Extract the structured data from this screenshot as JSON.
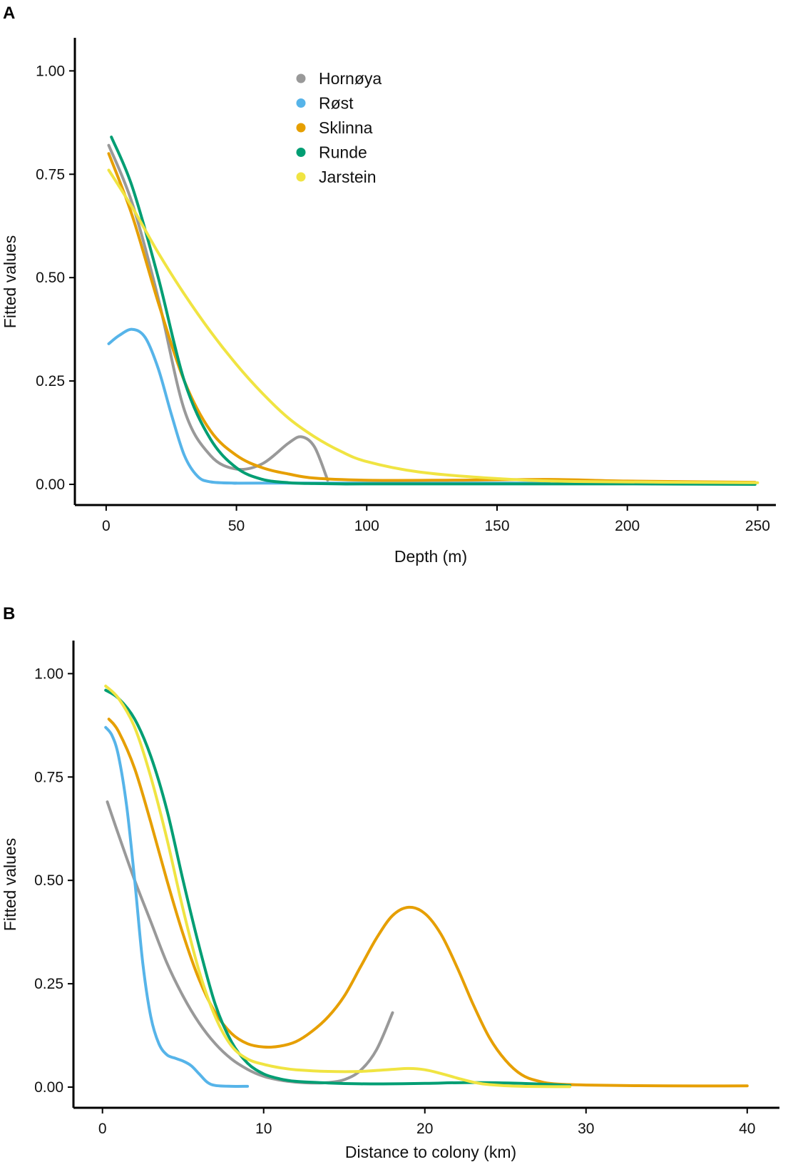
{
  "chart_data": [
    {
      "panel": "A",
      "type": "line",
      "title": "",
      "xlabel": "Depth (m)",
      "ylabel": "Fitted values",
      "xlim": [
        -12,
        257
      ],
      "ylim": [
        -0.05,
        1.08
      ],
      "xticks": [
        0,
        50,
        100,
        150,
        200,
        250
      ],
      "yticks": [
        0.0,
        0.25,
        0.5,
        0.75,
        1.0
      ],
      "ytick_labels": [
        "0.00",
        "0.25",
        "0.50",
        "0.75",
        "1.00"
      ],
      "grid": false,
      "legend_position": "top-center",
      "series": [
        {
          "name": "Hornøya",
          "color": "#999999",
          "x": [
            1,
            10,
            20,
            30,
            40,
            50,
            60,
            70,
            75,
            80,
            85
          ],
          "y": [
            0.82,
            0.68,
            0.45,
            0.18,
            0.07,
            0.037,
            0.05,
            0.1,
            0.115,
            0.09,
            0.01
          ]
        },
        {
          "name": "Røst",
          "color": "#56B4E9",
          "x": [
            1,
            5,
            10,
            15,
            20,
            25,
            30,
            35,
            40,
            50,
            60,
            170
          ],
          "y": [
            0.34,
            0.36,
            0.375,
            0.355,
            0.28,
            0.17,
            0.07,
            0.02,
            0.006,
            0.003,
            0.003,
            0.003
          ]
        },
        {
          "name": "Sklinna",
          "color": "#E69F00",
          "x": [
            1,
            10,
            20,
            30,
            40,
            50,
            60,
            70,
            80,
            100,
            130,
            170,
            200,
            249
          ],
          "y": [
            0.8,
            0.65,
            0.44,
            0.25,
            0.13,
            0.07,
            0.04,
            0.025,
            0.015,
            0.01,
            0.01,
            0.012,
            0.008,
            0.005
          ]
        },
        {
          "name": "Runde",
          "color": "#009E73",
          "x": [
            2,
            10,
            20,
            30,
            40,
            50,
            60,
            70,
            80,
            90,
            100,
            150,
            200,
            249
          ],
          "y": [
            0.84,
            0.72,
            0.5,
            0.25,
            0.11,
            0.04,
            0.012,
            0.004,
            0.002,
            0.001,
            0.001,
            0.001,
            0.001,
            0.0
          ]
        },
        {
          "name": "Jarstein",
          "color": "#F0E442",
          "x": [
            1,
            10,
            20,
            30,
            40,
            50,
            60,
            70,
            80,
            90,
            100,
            120,
            150,
            180,
            250
          ],
          "y": [
            0.76,
            0.67,
            0.56,
            0.46,
            0.37,
            0.29,
            0.22,
            0.16,
            0.115,
            0.08,
            0.055,
            0.03,
            0.014,
            0.007,
            0.004
          ]
        }
      ]
    },
    {
      "panel": "B",
      "type": "line",
      "title": "",
      "xlabel": "Distance to colony (km)",
      "ylabel": "Fitted values",
      "xlim": [
        -1.8,
        42
      ],
      "ylim": [
        -0.05,
        1.08
      ],
      "xticks": [
        0,
        10,
        20,
        30,
        40
      ],
      "yticks": [
        0.0,
        0.25,
        0.5,
        0.75,
        1.0
      ],
      "ytick_labels": [
        "0.00",
        "0.25",
        "0.50",
        "0.75",
        "1.00"
      ],
      "grid": false,
      "legend_position": "none",
      "series": [
        {
          "name": "Hornøya",
          "color": "#999999",
          "x": [
            0.3,
            1,
            2,
            3,
            4,
            5,
            6,
            7,
            8,
            9,
            10,
            11,
            12,
            13,
            14,
            15,
            16,
            17,
            18
          ],
          "y": [
            0.69,
            0.61,
            0.5,
            0.4,
            0.3,
            0.22,
            0.155,
            0.105,
            0.068,
            0.043,
            0.026,
            0.017,
            0.012,
            0.01,
            0.011,
            0.018,
            0.04,
            0.09,
            0.18
          ]
        },
        {
          "name": "Røst",
          "color": "#56B4E9",
          "x": [
            0.2,
            0.6,
            1,
            1.5,
            2,
            2.5,
            3,
            3.5,
            4,
            4.5,
            5,
            5.5,
            6,
            6.5,
            7,
            8,
            9
          ],
          "y": [
            0.87,
            0.85,
            0.8,
            0.68,
            0.5,
            0.3,
            0.17,
            0.105,
            0.078,
            0.07,
            0.063,
            0.052,
            0.032,
            0.012,
            0.004,
            0.002,
            0.002
          ]
        },
        {
          "name": "Sklinna",
          "color": "#E69F00",
          "x": [
            0.4,
            1,
            2,
            3,
            4,
            5,
            6,
            7,
            8,
            9,
            10,
            11,
            12,
            13,
            14,
            15,
            16,
            17,
            18,
            19,
            20,
            21,
            22,
            23,
            24,
            25,
            26,
            27,
            28,
            30,
            35,
            40
          ],
          "y": [
            0.89,
            0.86,
            0.77,
            0.64,
            0.5,
            0.37,
            0.26,
            0.18,
            0.13,
            0.105,
            0.097,
            0.099,
            0.11,
            0.135,
            0.17,
            0.22,
            0.29,
            0.36,
            0.415,
            0.435,
            0.42,
            0.37,
            0.29,
            0.2,
            0.12,
            0.065,
            0.03,
            0.015,
            0.008,
            0.005,
            0.003,
            0.003
          ]
        },
        {
          "name": "Runde",
          "color": "#009E73",
          "x": [
            0.2,
            1,
            2,
            3,
            4,
            5,
            6,
            7,
            8,
            9,
            10,
            11,
            12,
            14,
            16,
            18,
            20,
            23,
            26,
            29
          ],
          "y": [
            0.96,
            0.94,
            0.89,
            0.8,
            0.67,
            0.5,
            0.34,
            0.2,
            0.11,
            0.058,
            0.032,
            0.02,
            0.014,
            0.01,
            0.008,
            0.008,
            0.009,
            0.011,
            0.009,
            0.004
          ]
        },
        {
          "name": "Jarstein",
          "color": "#F0E442",
          "x": [
            0.2,
            1,
            2,
            3,
            4,
            5,
            6,
            7,
            8,
            9,
            10,
            11,
            12,
            14,
            16,
            18,
            19,
            20,
            21,
            22,
            23,
            24,
            26,
            29
          ],
          "y": [
            0.97,
            0.94,
            0.87,
            0.75,
            0.6,
            0.43,
            0.28,
            0.17,
            0.1,
            0.068,
            0.055,
            0.047,
            0.042,
            0.038,
            0.038,
            0.043,
            0.045,
            0.042,
            0.033,
            0.022,
            0.012,
            0.006,
            0.002,
            0.001
          ]
        }
      ]
    }
  ]
}
